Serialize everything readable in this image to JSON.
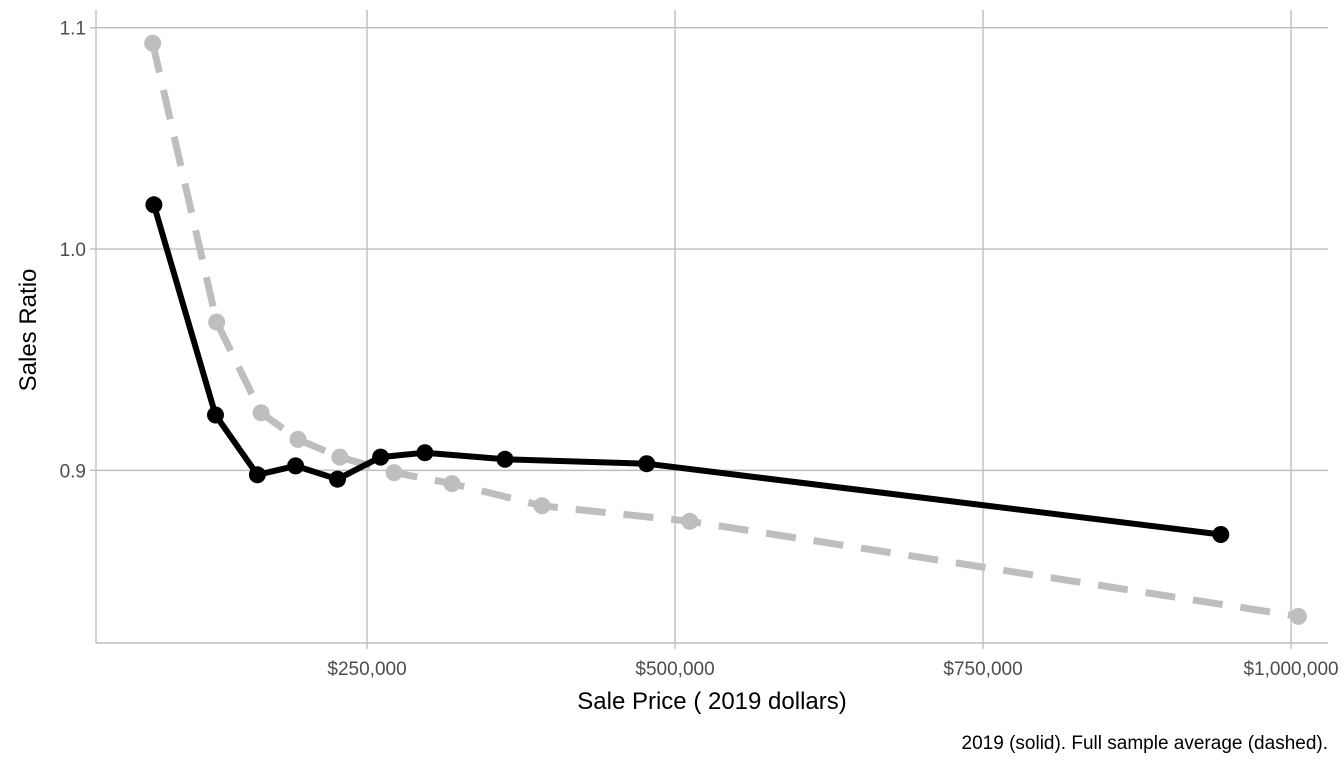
{
  "chart_data": {
    "type": "line",
    "xlabel": "Sale Price ( 2019 dollars)",
    "ylabel": "Sales Ratio",
    "caption": "2019 (solid). Full sample average (dashed).",
    "xlim": [
      30000,
      1030000
    ],
    "ylim": [
      0.822,
      1.108
    ],
    "x_ticks": [
      250000,
      500000,
      750000,
      1000000
    ],
    "x_tick_labels": [
      "$250,000",
      "$500,000",
      "$750,000",
      "$1,000,000"
    ],
    "y_ticks": [
      0.9,
      1.0,
      1.1
    ],
    "y_tick_labels": [
      "0.9",
      "1.0",
      "1.1"
    ],
    "grid": true,
    "series": [
      {
        "style": "dashed",
        "color": "#bebebe",
        "x": [
          76000,
          128000,
          164000,
          194000,
          228000,
          272000,
          319000,
          392000,
          512000,
          1006000
        ],
        "y": [
          1.093,
          0.967,
          0.926,
          0.914,
          0.906,
          0.899,
          0.894,
          0.884,
          0.877,
          0.834
        ]
      },
      {
        "style": "solid",
        "color": "#000000",
        "x": [
          77000,
          127000,
          161000,
          192000,
          226000,
          261000,
          297000,
          362000,
          477000,
          943000
        ],
        "y": [
          1.02,
          0.925,
          0.898,
          0.902,
          0.896,
          0.906,
          0.908,
          0.905,
          0.903,
          0.871
        ]
      }
    ]
  }
}
